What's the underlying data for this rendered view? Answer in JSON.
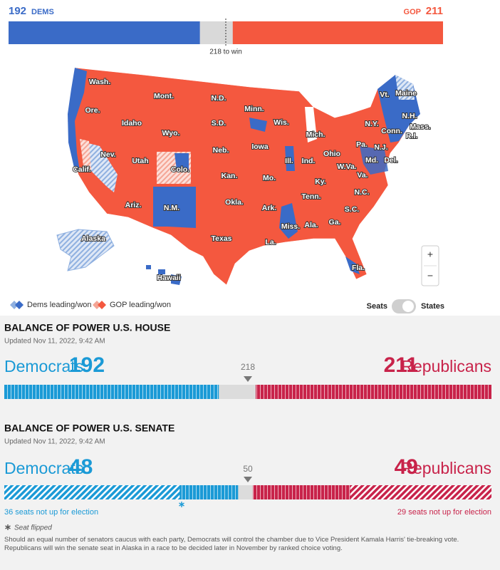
{
  "header": {
    "dem_seats": 192,
    "dem_label": "DEMS",
    "gop_label": "GOP",
    "gop_seats": 211,
    "threshold": {
      "value": 218,
      "label": "218 to win"
    }
  },
  "map": {
    "states": [
      "Wash.",
      "Mont.",
      "N.D.",
      "Minn.",
      "Wis.",
      "Mich.",
      "Vt.",
      "Maine",
      "N.H.",
      "Mass.",
      "R.I.",
      "Conn.",
      "N.Y.",
      "Ore.",
      "Idaho",
      "Wyo.",
      "S.D.",
      "Iowa",
      "Nev.",
      "Utah",
      "Colo.",
      "Neb.",
      "Ill.",
      "Ind.",
      "Ohio",
      "Pa.",
      "N.J.",
      "Md.",
      "Del.",
      "W.Va.",
      "Va.",
      "Calif.",
      "Kan.",
      "Mo.",
      "Ky.",
      "Tenn.",
      "N.C.",
      "Ariz.",
      "N.M.",
      "Okla.",
      "Ark.",
      "S.C.",
      "Miss.",
      "Ala.",
      "Ga.",
      "Texas",
      "La.",
      "Fla.",
      "Alaska",
      "Hawaii"
    ],
    "legend": [
      "Dems leading/won",
      "GOP leading/won"
    ],
    "toggle": [
      "Seats",
      "States"
    ],
    "zoom": [
      "+",
      "−"
    ]
  },
  "house": {
    "title": "BALANCE OF POWER U.S. HOUSE",
    "updated": "Updated Nov 11, 2022, 9:42 AM",
    "dem_label": "Democrats",
    "dem_seats": 192,
    "threshold": 218,
    "gop_seats": 211,
    "gop_label": "Republicans"
  },
  "senate": {
    "title": "BALANCE OF POWER U.S. SENATE",
    "updated": "Updated Nov 11, 2022, 9:42 AM",
    "dem_label": "Democrats",
    "dem_seats": 48,
    "dem_not_up": {
      "value": 36,
      "label": "36 seats not up for election"
    },
    "threshold": 50,
    "gop_seats": 49,
    "gop_not_up": {
      "value": 29,
      "label": "29 seats not up for election"
    },
    "gop_label": "Republicans"
  },
  "note": "Seat flipped",
  "footnote": "Should an equal number of senators caucus with each party, Democrats will control the chamber due to Vice President Kamala Harris' tie-breaking vote. Republicans will win the senate seat in Alaska in a race to be decided later in November by ranked choice voting."
}
